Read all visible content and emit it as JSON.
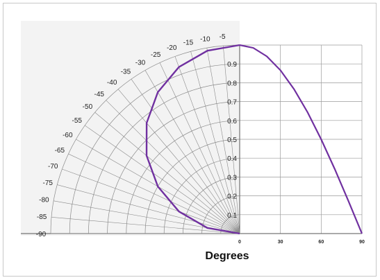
{
  "chart_data": {
    "type": "line",
    "title": "",
    "xlabel": "Degrees",
    "ylabel": "",
    "polar_angle_labels": [
      "-5",
      "-10",
      "-15",
      "-20",
      "-25",
      "-30",
      "-35",
      "-40",
      "-45",
      "-50",
      "-55",
      "-60",
      "-65",
      "-70",
      "-75",
      "-80",
      "-85",
      "-90"
    ],
    "radial_labels": [
      "0.1",
      "0.2",
      "0.3",
      "0.4",
      "0.5",
      "0.6",
      "0.7",
      "0.8",
      "0.9"
    ],
    "x_ticks": [
      "0",
      "30",
      "60",
      "90"
    ],
    "xlim": [
      0,
      90
    ],
    "ylim": [
      0,
      1
    ],
    "grid": true,
    "series": [
      {
        "color": "#7030a0",
        "x": [
          0,
          10,
          20,
          30,
          40,
          50,
          60,
          70,
          80,
          90
        ],
        "y": [
          1.0,
          0.985,
          0.94,
          0.866,
          0.766,
          0.643,
          0.5,
          0.342,
          0.174,
          0.0
        ]
      }
    ]
  }
}
